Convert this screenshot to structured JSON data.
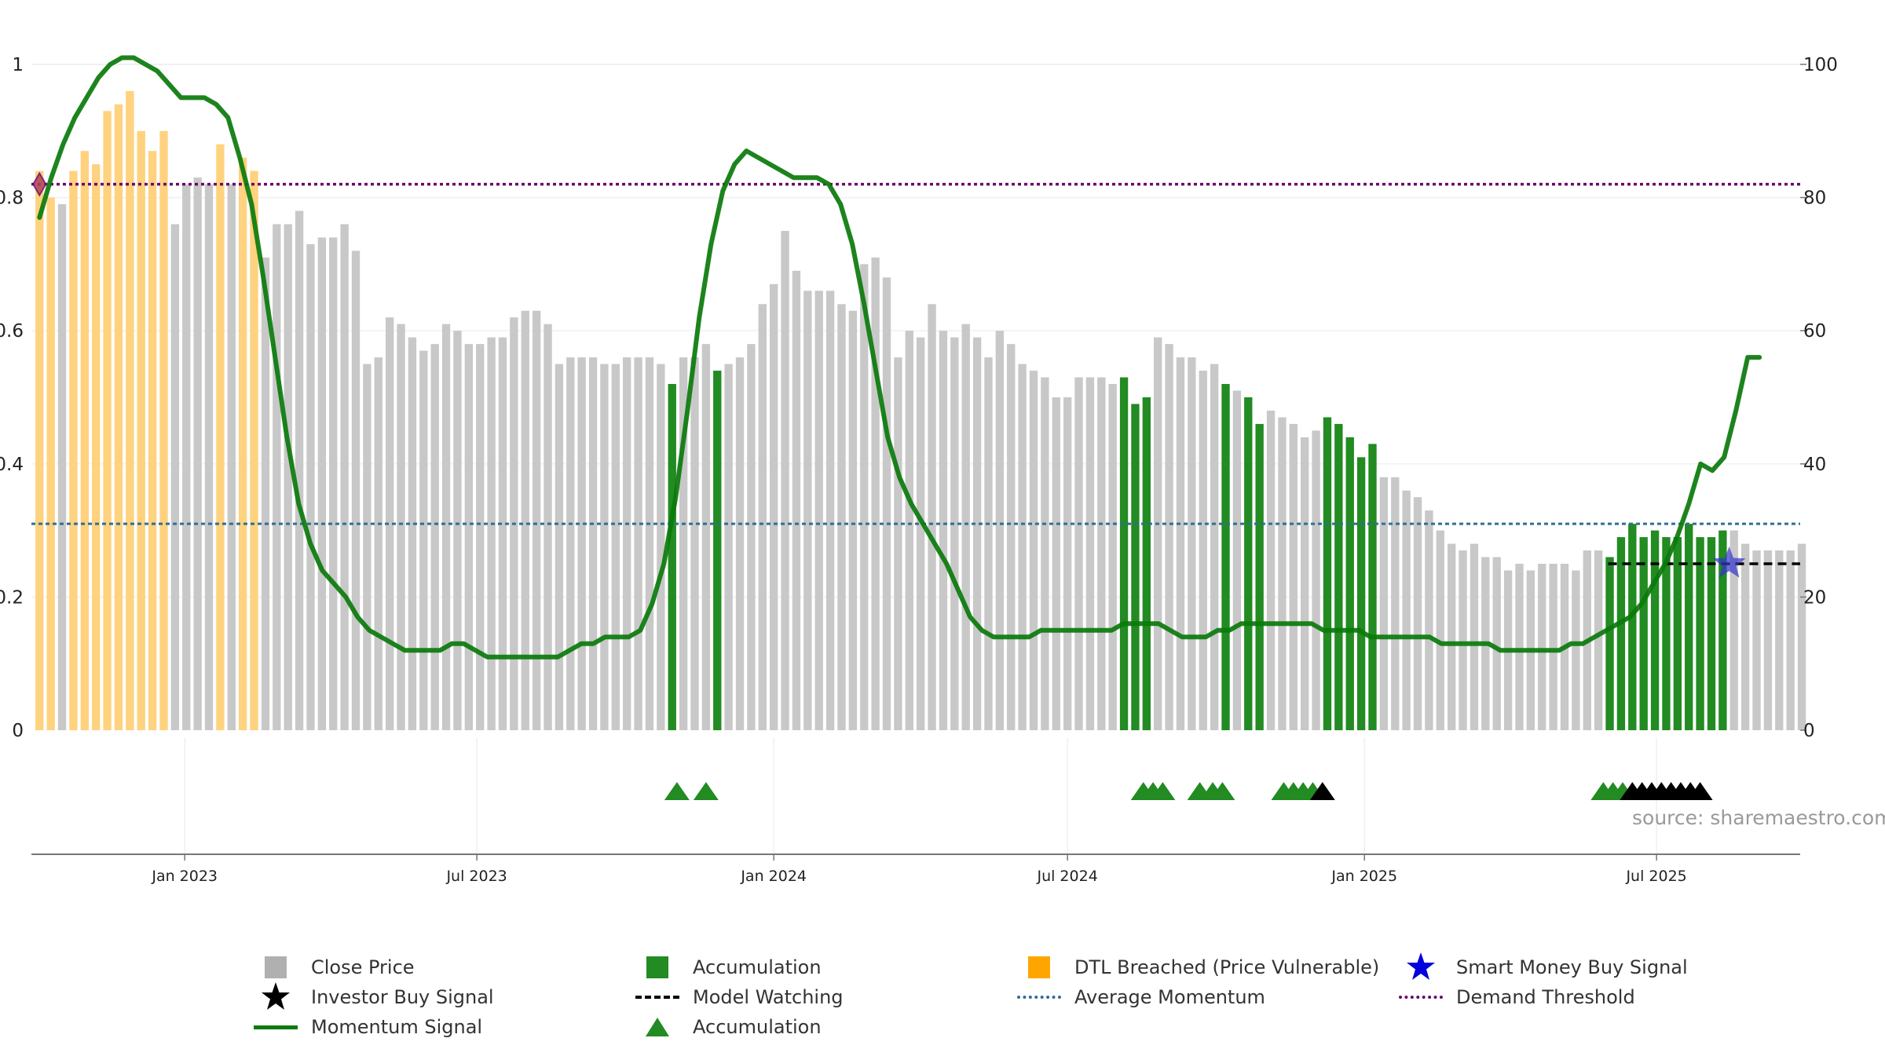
{
  "chart_data": {
    "type": "bar",
    "y_left_ticks": [
      "0",
      "0.2",
      "0.4",
      "0.6",
      "0.8",
      "1"
    ],
    "y_right_ticks": [
      "0",
      "20",
      "40",
      "60",
      "80",
      "100"
    ],
    "x_ticks": [
      {
        "label": "Jan 2023",
        "date": "2023-01-01"
      },
      {
        "label": "Jul 2023",
        "date": "2023-07-01"
      },
      {
        "label": "Jan 2024",
        "date": "2024-01-01"
      },
      {
        "label": "Jul 2024",
        "date": "2024-07-01"
      },
      {
        "label": "Jan 2025",
        "date": "2025-01-01"
      },
      {
        "label": "Jul 2025",
        "date": "2025-07-01"
      }
    ],
    "x_range": [
      "2022-09-28",
      "2025-09-28"
    ],
    "y_left_range": [
      0,
      1
    ],
    "y_right_range": [
      0,
      100
    ],
    "start_date": "2022-10-03",
    "close_price_series": {
      "name": "Close Price",
      "values": [
        0.84,
        0.8,
        0.79,
        0.84,
        0.87,
        0.85,
        0.93,
        0.94,
        0.96,
        0.9,
        0.87,
        0.9,
        0.76,
        0.82,
        0.83,
        0.82,
        0.88,
        0.82,
        0.86,
        0.84,
        0.71,
        0.76,
        0.76,
        0.78,
        0.73,
        0.74,
        0.74,
        0.76,
        0.72,
        0.55,
        0.56,
        0.62,
        0.61,
        0.59,
        0.57,
        0.58,
        0.61,
        0.6,
        0.58,
        0.58,
        0.59,
        0.59,
        0.62,
        0.63,
        0.63,
        0.61,
        0.55,
        0.56,
        0.56,
        0.56,
        0.55,
        0.55,
        0.56,
        0.56,
        0.56,
        0.55,
        0.52,
        0.56,
        0.56,
        0.58,
        0.54,
        0.55,
        0.56,
        0.58,
        0.64,
        0.67,
        0.75,
        0.69,
        0.66,
        0.66,
        0.66,
        0.64,
        0.63,
        0.7,
        0.71,
        0.68,
        0.56,
        0.6,
        0.59,
        0.64,
        0.6,
        0.59,
        0.61,
        0.59,
        0.56,
        0.6,
        0.58,
        0.55,
        0.54,
        0.53,
        0.5,
        0.5,
        0.53,
        0.53,
        0.53,
        0.52,
        0.53,
        0.49,
        0.5,
        0.59,
        0.58,
        0.56,
        0.56,
        0.54,
        0.55,
        0.52,
        0.51,
        0.5,
        0.46,
        0.48,
        0.47,
        0.46,
        0.44,
        0.45,
        0.47,
        0.46,
        0.44,
        0.41,
        0.43,
        0.38,
        0.38,
        0.36,
        0.35,
        0.33,
        0.3,
        0.28,
        0.27,
        0.28,
        0.26,
        0.26,
        0.24,
        0.25,
        0.24,
        0.25,
        0.25,
        0.25,
        0.24,
        0.27,
        0.27,
        0.26,
        0.29,
        0.31,
        0.29,
        0.3,
        0.29,
        0.29,
        0.31,
        0.29,
        0.29,
        0.3,
        0.3,
        0.28,
        0.27,
        0.27,
        0.27,
        0.27,
        0.28
      ]
    },
    "accumulation_bar_indices": [
      56,
      60,
      96,
      97,
      98,
      105,
      107,
      108,
      114,
      115,
      116,
      117,
      118,
      139,
      140,
      141,
      142,
      143,
      144,
      145,
      146,
      147,
      148,
      149
    ],
    "dtl_breached_bar_indices": [
      0,
      1,
      3,
      4,
      5,
      6,
      7,
      8,
      9,
      10,
      11,
      16,
      18,
      19
    ],
    "momentum_signal": {
      "name": "Momentum Signal",
      "values": [
        77,
        83,
        88,
        92,
        95,
        98,
        100,
        101,
        101,
        100,
        99,
        97,
        95,
        95,
        95,
        94,
        92,
        86,
        79,
        68,
        56,
        44,
        34,
        28,
        24,
        22,
        20,
        17,
        15,
        14,
        13,
        12,
        12,
        12,
        12,
        13,
        13,
        12,
        11,
        11,
        11,
        11,
        11,
        11,
        11,
        12,
        13,
        13,
        14,
        14,
        14,
        15,
        19,
        25,
        35,
        48,
        62,
        73,
        81,
        85,
        87,
        86,
        85,
        84,
        83,
        83,
        83,
        82,
        79,
        73,
        64,
        54,
        44,
        38,
        34,
        31,
        28,
        25,
        21,
        17,
        15,
        14,
        14,
        14,
        14,
        15,
        15,
        15,
        15,
        15,
        15,
        15,
        16,
        16,
        16,
        16,
        15,
        14,
        14,
        14,
        15,
        15,
        16,
        16,
        16,
        16,
        16,
        16,
        16,
        15,
        15,
        15,
        15,
        14,
        14,
        14,
        14,
        14,
        14,
        13,
        13,
        13,
        13,
        13,
        12,
        12,
        12,
        12,
        12,
        12,
        13,
        13,
        14,
        15,
        16,
        17,
        19,
        22,
        25,
        29,
        34,
        40,
        39,
        41,
        48,
        56,
        56
      ],
      "start_date": "2022-10-03",
      "step_days": 7.3
    },
    "average_momentum": {
      "name": "Average Momentum",
      "value": 0.31
    },
    "demand_threshold": {
      "name": "Demand Threshold",
      "value": 0.82
    },
    "model_watching": {
      "name": "Model Watching",
      "value": 0.25,
      "x_range": [
        "2025-06-01",
        "2025-09-28"
      ]
    },
    "smart_money_buy_signal": {
      "name": "Smart Money Buy Signal",
      "date": "2025-08-15",
      "value": 0.25
    },
    "accumulation_markers": {
      "name": "Accumulation",
      "dates": [
        "2023-11-02",
        "2023-11-20",
        "2024-08-17",
        "2024-08-23",
        "2024-08-29",
        "2024-09-21",
        "2024-09-29",
        "2024-10-05",
        "2024-11-12",
        "2024-11-18",
        "2024-11-24",
        "2024-11-30",
        "2025-05-29",
        "2025-06-04",
        "2025-06-10"
      ]
    },
    "investor_buy_markers": {
      "name": "Investor Buy Signal",
      "dates": [
        "2024-12-06",
        "2025-06-16",
        "2025-06-22",
        "2025-06-28",
        "2025-07-04",
        "2025-07-10",
        "2025-07-16",
        "2025-07-22",
        "2025-07-28"
      ]
    },
    "start_marker": {
      "date": "2022-10-03",
      "value": 0.82
    },
    "colors": {
      "close_price": "#c8c8c8",
      "accumulation": "#228b22",
      "dtl_breached": "#ffd27f",
      "momentum": "#0a7a0a",
      "average_momentum": "#2f6f94",
      "demand_threshold": "#6a0a6a",
      "model_watching": "#000000",
      "smart_money": "#3333cc",
      "investor_buy": "#000000"
    },
    "grid": true,
    "legend_position": "bottom"
  },
  "legend": [
    {
      "label": "Close Price",
      "symbol": "square",
      "color": "#b0b0b0"
    },
    {
      "label": "Accumulation",
      "symbol": "square",
      "color": "#228b22"
    },
    {
      "label": "DTL Breached (Price Vulnerable)",
      "symbol": "square",
      "color": "#ffa500"
    },
    {
      "label": "Smart Money Buy Signal",
      "symbol": "star",
      "color": "#0000dd"
    },
    {
      "label": "Investor Buy Signal",
      "symbol": "star",
      "color": "#000000"
    },
    {
      "label": "Model Watching",
      "symbol": "dash",
      "color": "#000000"
    },
    {
      "label": "Average Momentum",
      "symbol": "dot",
      "color": "#2f6f94"
    },
    {
      "label": "Demand Threshold",
      "symbol": "dot",
      "color": "#6a0a6a"
    },
    {
      "label": "Momentum Signal",
      "symbol": "line",
      "color": "#0a7a0a"
    },
    {
      "label": "Accumulation",
      "symbol": "triangle",
      "color": "#228b22"
    }
  ],
  "source_text": "source: sharemaestro.com"
}
